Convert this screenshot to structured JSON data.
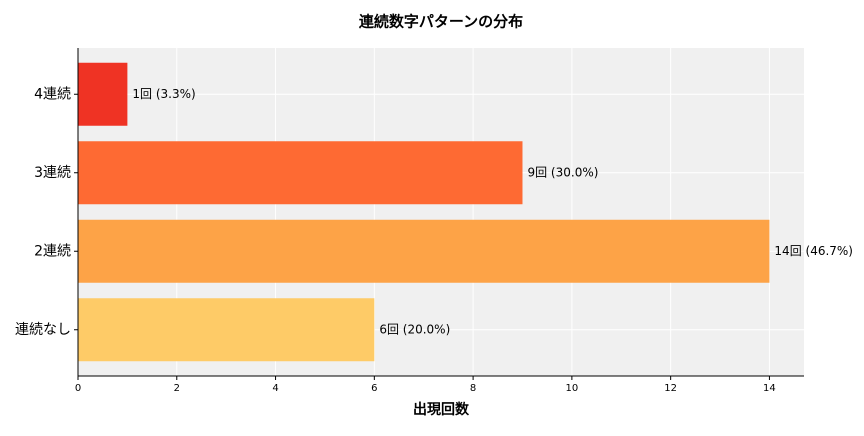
{
  "chart_data": {
    "type": "barh",
    "title": "連続数字パターンの分布",
    "x_label": "出現回数",
    "categories": [
      "4連続",
      "3連続",
      "2連続",
      "連続なし"
    ],
    "values": [
      1,
      9,
      14,
      6
    ],
    "value_labels": [
      "1回 (3.3%)",
      "9回 (30.0%)",
      "14回 (46.7%)",
      "6回 (20.0%)"
    ],
    "colors": [
      "#ef3324",
      "#fe6a33",
      "#fda347",
      "#fecb67"
    ],
    "xlim": [
      0,
      14.7
    ],
    "xticks": [
      0,
      2,
      4,
      6,
      8,
      10,
      12,
      14
    ],
    "grid": true
  }
}
